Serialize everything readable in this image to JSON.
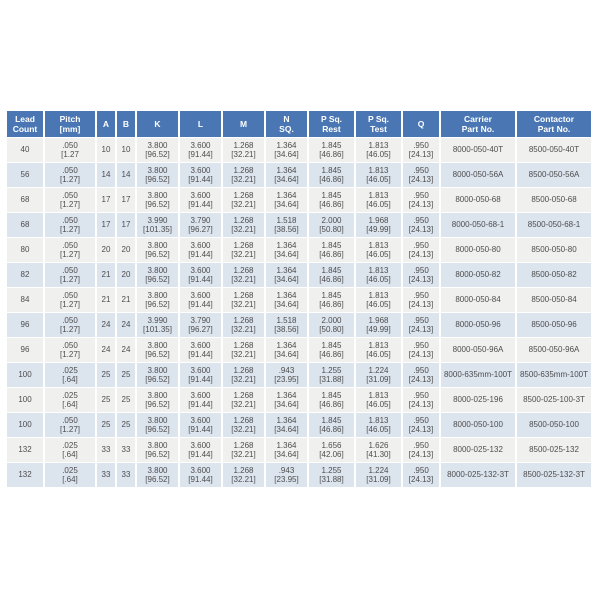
{
  "table": {
    "colors": {
      "header_bg": "#4a77b4",
      "header_text": "#ffffff",
      "row_alt_gray": "#f0f0ef",
      "row_alt_blue": "#dce4ee",
      "body_text": "#4d4d4d"
    },
    "columns": [
      {
        "id": "lead-count",
        "label": [
          "Lead",
          "Count"
        ]
      },
      {
        "id": "pitch-mm",
        "label": [
          "Pitch",
          "[mm]"
        ]
      },
      {
        "id": "a",
        "label": [
          "A"
        ]
      },
      {
        "id": "b",
        "label": [
          "B"
        ]
      },
      {
        "id": "k",
        "label": [
          "K"
        ]
      },
      {
        "id": "l",
        "label": [
          "L"
        ]
      },
      {
        "id": "m",
        "label": [
          "M"
        ]
      },
      {
        "id": "n-sq",
        "label": [
          "N",
          "SQ."
        ]
      },
      {
        "id": "p-sq-rest",
        "label": [
          "P Sq.",
          "Rest"
        ]
      },
      {
        "id": "p-sq-test",
        "label": [
          "P Sq.",
          "Test"
        ]
      },
      {
        "id": "q",
        "label": [
          "Q"
        ]
      },
      {
        "id": "carrier-part-no",
        "label": [
          "Carrier",
          "Part No."
        ]
      },
      {
        "id": "contactor-part-no",
        "label": [
          "Contactor",
          "Part No."
        ]
      }
    ],
    "rows": [
      [
        [
          "40"
        ],
        [
          ".050",
          "[1.27"
        ],
        [
          "10"
        ],
        [
          "10"
        ],
        [
          "3.800",
          "[96.52]"
        ],
        [
          "3.600",
          "[91.44]"
        ],
        [
          "1.268",
          "[32.21]"
        ],
        [
          "1.364",
          "[34.64]"
        ],
        [
          "1.845",
          "[46.86]"
        ],
        [
          "1.813",
          "[46.05]"
        ],
        [
          ".950",
          "[24.13]"
        ],
        [
          "8000-050-40T"
        ],
        [
          "8500-050-40T"
        ]
      ],
      [
        [
          "56"
        ],
        [
          ".050",
          "[1.27]"
        ],
        [
          "14"
        ],
        [
          "14"
        ],
        [
          "3.800",
          "[96.52]"
        ],
        [
          "3.600",
          "[91.44]"
        ],
        [
          "1.268",
          "[32.21]"
        ],
        [
          "1.364",
          "[34.64]"
        ],
        [
          "1.845",
          "[46.86]"
        ],
        [
          "1.813",
          "[46.05]"
        ],
        [
          ".950",
          "[24.13]"
        ],
        [
          "8000-050-56A"
        ],
        [
          "8500-050-56A"
        ]
      ],
      [
        [
          "68"
        ],
        [
          ".050",
          "[1.27]"
        ],
        [
          "17"
        ],
        [
          "17"
        ],
        [
          "3.800",
          "[96.52]"
        ],
        [
          "3.600",
          "[91.44]"
        ],
        [
          "1.268",
          "[32.21]"
        ],
        [
          "1.364",
          "[34.64]"
        ],
        [
          "1.845",
          "[46.86]"
        ],
        [
          "1.813",
          "[46.05]"
        ],
        [
          ".950",
          "[24.13]"
        ],
        [
          "8000-050-68"
        ],
        [
          "8500-050-68"
        ]
      ],
      [
        [
          "68"
        ],
        [
          ".050",
          "[1.27]"
        ],
        [
          "17"
        ],
        [
          "17"
        ],
        [
          "3.990",
          "[101.35]"
        ],
        [
          "3.790",
          "[96.27]"
        ],
        [
          "1.268",
          "[32.21]"
        ],
        [
          "1.518",
          "[38.56]"
        ],
        [
          "2.000",
          "[50.80]"
        ],
        [
          "1.968",
          "[49.99]"
        ],
        [
          ".950",
          "[24.13]"
        ],
        [
          "8000-050-68-1"
        ],
        [
          "8500-050-68-1"
        ]
      ],
      [
        [
          "80"
        ],
        [
          ".050",
          "[1.27]"
        ],
        [
          "20"
        ],
        [
          "20"
        ],
        [
          "3.800",
          "[96.52]"
        ],
        [
          "3.600",
          "[91.44]"
        ],
        [
          "1.268",
          "[32.21]"
        ],
        [
          "1.364",
          "[34.64]"
        ],
        [
          "1.845",
          "[46.86]"
        ],
        [
          "1.813",
          "[46.05]"
        ],
        [
          ".950",
          "[24.13]"
        ],
        [
          "8000-050-80"
        ],
        [
          "8500-050-80"
        ]
      ],
      [
        [
          "82"
        ],
        [
          ".050",
          "[1.27]"
        ],
        [
          "21"
        ],
        [
          "20"
        ],
        [
          "3.800",
          "[96.52]"
        ],
        [
          "3.600",
          "[91.44]"
        ],
        [
          "1.268",
          "[32.21]"
        ],
        [
          "1.364",
          "[34.64]"
        ],
        [
          "1.845",
          "[46.86]"
        ],
        [
          "1.813",
          "[46.05]"
        ],
        [
          ".950",
          "[24.13]"
        ],
        [
          "8000-050-82"
        ],
        [
          "8500-050-82"
        ]
      ],
      [
        [
          "84"
        ],
        [
          ".050",
          "[1.27]"
        ],
        [
          "21"
        ],
        [
          "21"
        ],
        [
          "3.800",
          "[96.52]"
        ],
        [
          "3.600",
          "[91.44]"
        ],
        [
          "1.268",
          "[32.21]"
        ],
        [
          "1.364",
          "[34.64]"
        ],
        [
          "1.845",
          "[46.86]"
        ],
        [
          "1.813",
          "[46.05]"
        ],
        [
          ".950",
          "[24.13]"
        ],
        [
          "8000-050-84"
        ],
        [
          "8500-050-84"
        ]
      ],
      [
        [
          "96"
        ],
        [
          ".050",
          "[1.27]"
        ],
        [
          "24"
        ],
        [
          "24"
        ],
        [
          "3.990",
          "[101.35]"
        ],
        [
          "3.790",
          "[96.27]"
        ],
        [
          "1.268",
          "[32.21]"
        ],
        [
          "1.518",
          "[38.56]"
        ],
        [
          "2.000",
          "[50.80]"
        ],
        [
          "1.968",
          "[49.99]"
        ],
        [
          ".950",
          "[24.13]"
        ],
        [
          "8000-050-96"
        ],
        [
          "8500-050-96"
        ]
      ],
      [
        [
          "96"
        ],
        [
          ".050",
          "[1.27]"
        ],
        [
          "24"
        ],
        [
          "24"
        ],
        [
          "3.800",
          "[96.52]"
        ],
        [
          "3.600",
          "[91.44]"
        ],
        [
          "1.268",
          "[32.21]"
        ],
        [
          "1.364",
          "[34.64]"
        ],
        [
          "1.845",
          "[46.86]"
        ],
        [
          "1.813",
          "[46.05]"
        ],
        [
          ".950",
          "[24.13]"
        ],
        [
          "8000-050-96A"
        ],
        [
          "8500-050-96A"
        ]
      ],
      [
        [
          "100"
        ],
        [
          ".025",
          "[.64]"
        ],
        [
          "25"
        ],
        [
          "25"
        ],
        [
          "3.800",
          "[96.52]"
        ],
        [
          "3.600",
          "[91.44]"
        ],
        [
          "1.268",
          "[32.21]"
        ],
        [
          ".943",
          "[23.95]"
        ],
        [
          "1.255",
          "[31.88]"
        ],
        [
          "1.224",
          "[31.09]"
        ],
        [
          ".950",
          "[24.13]"
        ],
        [
          "8000-635mm-100T"
        ],
        [
          "8500-635mm-100T"
        ]
      ],
      [
        [
          "100"
        ],
        [
          ".025",
          "[.64]"
        ],
        [
          "25"
        ],
        [
          "25"
        ],
        [
          "3.800",
          "[96.52]"
        ],
        [
          "3.600",
          "[91.44]"
        ],
        [
          "1.268",
          "[32.21]"
        ],
        [
          "1.364",
          "[34.64]"
        ],
        [
          "1.845",
          "[46.86]"
        ],
        [
          "1.813",
          "[46.05]"
        ],
        [
          ".950",
          "[24.13]"
        ],
        [
          "8000-025-196"
        ],
        [
          "8500-025-100-3T"
        ]
      ],
      [
        [
          "100"
        ],
        [
          ".050",
          "[1.27]"
        ],
        [
          "25"
        ],
        [
          "25"
        ],
        [
          "3.800",
          "[96.52]"
        ],
        [
          "3.600",
          "[91.44]"
        ],
        [
          "1.268",
          "[32.21]"
        ],
        [
          "1.364",
          "[34.64]"
        ],
        [
          "1.845",
          "[46.86]"
        ],
        [
          "1.813",
          "[46.05]"
        ],
        [
          ".950",
          "[24.13]"
        ],
        [
          "8000-050-100"
        ],
        [
          "8500-050-100"
        ]
      ],
      [
        [
          "132"
        ],
        [
          ".025",
          "[.64]"
        ],
        [
          "33"
        ],
        [
          "33"
        ],
        [
          "3.800",
          "[96.52]"
        ],
        [
          "3.600",
          "[91.44]"
        ],
        [
          "1.268",
          "[32.21]"
        ],
        [
          "1.364",
          "[34.64]"
        ],
        [
          "1.656",
          "[42.06]"
        ],
        [
          "1.626",
          "[41.30]"
        ],
        [
          ".950",
          "[24.13]"
        ],
        [
          "8000-025-132"
        ],
        [
          "8500-025-132"
        ]
      ],
      [
        [
          "132"
        ],
        [
          ".025",
          "[.64]"
        ],
        [
          "33"
        ],
        [
          "33"
        ],
        [
          "3.800",
          "[96.52]"
        ],
        [
          "3.600",
          "[91.44]"
        ],
        [
          "1.268",
          "[32.21]"
        ],
        [
          ".943",
          "[23.95]"
        ],
        [
          "1.255",
          "[31.88]"
        ],
        [
          "1.224",
          "[31.09]"
        ],
        [
          ".950",
          "[24.13]"
        ],
        [
          "8000-025-132-3T"
        ],
        [
          "8500-025-132-3T"
        ]
      ]
    ]
  }
}
